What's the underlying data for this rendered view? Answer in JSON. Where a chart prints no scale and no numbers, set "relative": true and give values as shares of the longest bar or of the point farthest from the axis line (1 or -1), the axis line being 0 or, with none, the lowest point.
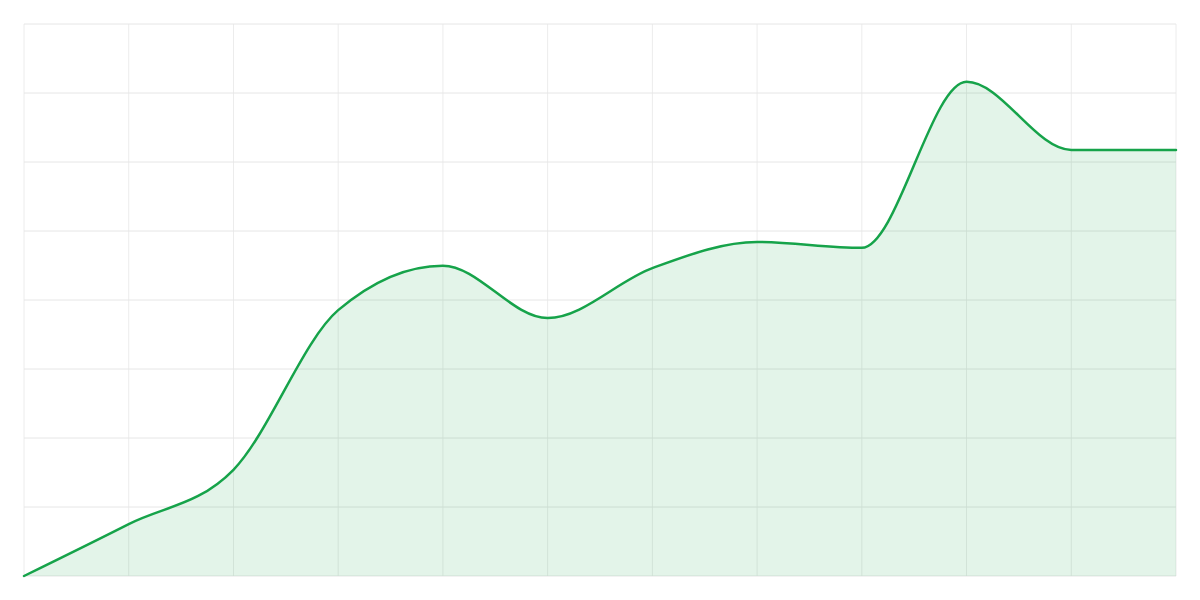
{
  "chart_data": {
    "type": "area",
    "relative": true,
    "grid": true,
    "categories": [
      null,
      null,
      null,
      null,
      null,
      null,
      null,
      null,
      null,
      null,
      null,
      null
    ],
    "series": [
      {
        "color": "#16a34a",
        "values": [
          0,
          0.105,
          0.215,
          0.538,
          0.628,
          0.522,
          0.623,
          0.676,
          0.664,
          1,
          0.862,
          0.862
        ]
      }
    ]
  }
}
